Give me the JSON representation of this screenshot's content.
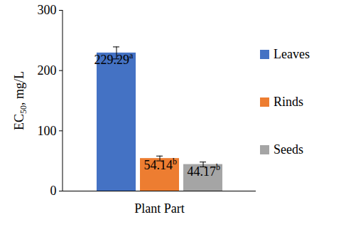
{
  "chart_data": {
    "type": "bar",
    "categories": [
      "Leaves",
      "Rinds",
      "Seeds"
    ],
    "values": [
      229.29,
      54.14,
      44.17
    ],
    "errors": [
      10,
      4,
      4
    ],
    "significance": [
      "a",
      "b",
      "b"
    ],
    "colors": [
      "#4472c4",
      "#ed7d31",
      "#a5a5a5"
    ],
    "x_label": "Plant Part",
    "y_label": "EC50, mg/L",
    "ylim": [
      0,
      300
    ],
    "yticks": [
      0,
      100,
      200,
      300
    ],
    "data_labels": true,
    "legend": "right",
    "grid": false
  }
}
